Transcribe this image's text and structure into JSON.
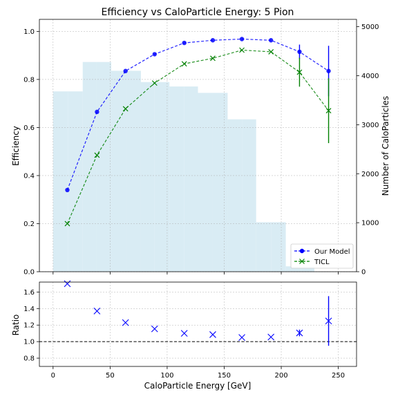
{
  "chart_data": {
    "title": "Efficiency vs CaloParticle Energy: 5 Pion",
    "xlabel": "CaloParticle Energy [GeV]",
    "xlim": [
      -12,
      266
    ],
    "xticks": [
      0,
      50,
      100,
      150,
      200,
      250
    ],
    "grid": true,
    "top_panel": {
      "type": "line",
      "ylabel": "Efficiency",
      "ylim": [
        0,
        1.05
      ],
      "yticks": [
        "0.0",
        "0.2",
        "0.4",
        "0.6",
        "0.8",
        "1.0"
      ],
      "y2label": "Number of CaloParticles",
      "y2lim": [
        0,
        5150
      ],
      "y2ticks": [
        0,
        1000,
        2000,
        3000,
        4000,
        5000
      ],
      "legend_position": "lower-right",
      "histogram": {
        "color": "#d9ecf4",
        "bins": [
          {
            "x0": 0,
            "x1": 13,
            "count": 3680
          },
          {
            "x0": 13,
            "x1": 26,
            "count": 3680
          },
          {
            "x0": 26,
            "x1": 38,
            "count": 4280
          },
          {
            "x0": 38,
            "x1": 51,
            "count": 4280
          },
          {
            "x0": 51,
            "x1": 64,
            "count": 4100
          },
          {
            "x0": 64,
            "x1": 77,
            "count": 4100
          },
          {
            "x0": 77,
            "x1": 89,
            "count": 3870
          },
          {
            "x0": 89,
            "x1": 102,
            "count": 3870
          },
          {
            "x0": 102,
            "x1": 115,
            "count": 3780
          },
          {
            "x0": 115,
            "x1": 127,
            "count": 3780
          },
          {
            "x0": 127,
            "x1": 140,
            "count": 3650
          },
          {
            "x0": 140,
            "x1": 153,
            "count": 3650
          },
          {
            "x0": 153,
            "x1": 166,
            "count": 3110
          },
          {
            "x0": 166,
            "x1": 178,
            "count": 3110
          },
          {
            "x0": 178,
            "x1": 191,
            "count": 1010
          },
          {
            "x0": 191,
            "x1": 204,
            "count": 1010
          },
          {
            "x0": 204,
            "x1": 217,
            "count": 110
          },
          {
            "x0": 217,
            "x1": 229,
            "count": 110
          }
        ]
      },
      "series": [
        {
          "name": "Our Model",
          "color": "#0000ff",
          "marker": "circle",
          "x": [
            12.5,
            38.5,
            63.5,
            89,
            115,
            140,
            165.5,
            191,
            216,
            241.5
          ],
          "y": [
            0.34,
            0.665,
            0.835,
            0.905,
            0.952,
            0.963,
            0.968,
            0.963,
            0.915,
            0.835
          ],
          "yerr": [
            0,
            0,
            0,
            0,
            0,
            0,
            0,
            0,
            0.03,
            0.105
          ]
        },
        {
          "name": "TICL",
          "color": "#008000",
          "marker": "x",
          "x": [
            12.5,
            38.5,
            63.5,
            89,
            115,
            140,
            165.5,
            191,
            216,
            241.5
          ],
          "y": [
            0.2,
            0.485,
            0.678,
            0.785,
            0.865,
            0.888,
            0.922,
            0.915,
            0.83,
            0.67
          ],
          "yerr": [
            0,
            0,
            0,
            0,
            0,
            0,
            0,
            0,
            0.06,
            0.135
          ]
        }
      ]
    },
    "bottom_panel": {
      "type": "scatter",
      "ylabel": "Ratio",
      "ylim": [
        0.7,
        1.72
      ],
      "yticks": [
        "0.8",
        "1.0",
        "1.2",
        "1.4",
        "1.6"
      ],
      "reference_line": 1.0,
      "color": "#0000ff",
      "x": [
        12.5,
        38.5,
        63.5,
        89,
        115,
        140,
        165.5,
        191,
        216,
        241.5
      ],
      "y": [
        1.7,
        1.37,
        1.23,
        1.155,
        1.1,
        1.085,
        1.05,
        1.055,
        1.105,
        1.25
      ],
      "yerr": [
        0,
        0,
        0,
        0,
        0,
        0,
        0,
        0,
        0.04,
        0.3
      ]
    }
  }
}
